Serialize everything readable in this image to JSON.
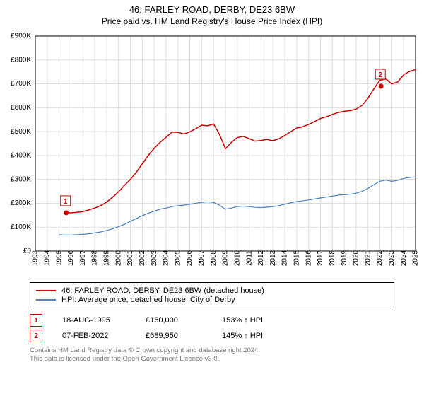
{
  "title": {
    "main": "46, FARLEY ROAD, DERBY, DE23 6BW",
    "sub": "Price paid vs. HM Land Registry's House Price Index (HPI)"
  },
  "chart": {
    "type": "line",
    "background_color": "#ffffff",
    "plot_border_color": "#000000",
    "grid_color": "#dddddd",
    "axis_fontsize": 10,
    "title_fontsize": 13,
    "xlim": [
      1993,
      2025
    ],
    "ylim": [
      0,
      900
    ],
    "x_ticks": [
      1993,
      1994,
      1995,
      1996,
      1997,
      1998,
      1999,
      2000,
      2001,
      2002,
      2003,
      2004,
      2005,
      2006,
      2007,
      2008,
      2009,
      2010,
      2011,
      2012,
      2013,
      2014,
      2015,
      2016,
      2017,
      2018,
      2019,
      2020,
      2021,
      2022,
      2023,
      2024,
      2025
    ],
    "y_ticks": [
      0,
      100,
      200,
      300,
      400,
      500,
      600,
      700,
      800,
      900
    ],
    "y_tick_labels": [
      "£0",
      "£100K",
      "£200K",
      "£300K",
      "£400K",
      "£500K",
      "£600K",
      "£700K",
      "£800K",
      "£900K"
    ],
    "series": [
      {
        "id": "price_paid",
        "label": "46, FARLEY ROAD, DERBY, DE23 6BW (detached house)",
        "color": "#cc0000",
        "line_width": 1.5,
        "x": [
          1995.5,
          1996,
          1996.5,
          1997,
          1997.5,
          1998,
          1998.5,
          1999,
          1999.5,
          2000,
          2000.5,
          2001,
          2001.5,
          2002,
          2002.5,
          2003,
          2003.5,
          2004,
          2004.5,
          2005,
          2005.5,
          2006,
          2006.5,
          2007,
          2007.5,
          2008,
          2008.5,
          2009,
          2009.5,
          2010,
          2010.5,
          2011,
          2011.5,
          2012,
          2012.5,
          2013,
          2013.5,
          2014,
          2014.5,
          2015,
          2015.5,
          2016,
          2016.5,
          2017,
          2017.5,
          2018,
          2018.5,
          2019,
          2019.5,
          2020,
          2020.5,
          2021,
          2021.5,
          2022,
          2022.5,
          2023,
          2023.5,
          2024,
          2024.5,
          2025
        ],
        "y": [
          160,
          160,
          162,
          165,
          172,
          180,
          190,
          205,
          225,
          248,
          275,
          300,
          330,
          365,
          400,
          430,
          455,
          476,
          498,
          497,
          490,
          499,
          512,
          527,
          524,
          532,
          488,
          428,
          455,
          475,
          480,
          470,
          460,
          463,
          467,
          462,
          470,
          484,
          500,
          515,
          520,
          530,
          542,
          555,
          562,
          572,
          580,
          585,
          588,
          594,
          610,
          640,
          680,
          715,
          720,
          700,
          708,
          738,
          752,
          760
        ]
      },
      {
        "id": "hpi",
        "label": "HPI: Average price, detached house, City of Derby",
        "color": "#4a7dbf",
        "line_width": 1.2,
        "x": [
          1995,
          1995.5,
          1996,
          1996.5,
          1997,
          1997.5,
          1998,
          1998.5,
          1999,
          1999.5,
          2000,
          2000.5,
          2001,
          2001.5,
          2002,
          2002.5,
          2003,
          2003.5,
          2004,
          2004.5,
          2005,
          2005.5,
          2006,
          2006.5,
          2007,
          2007.5,
          2008,
          2008.5,
          2009,
          2009.5,
          2010,
          2010.5,
          2011,
          2011.5,
          2012,
          2012.5,
          2013,
          2013.5,
          2014,
          2014.5,
          2015,
          2015.5,
          2016,
          2016.5,
          2017,
          2017.5,
          2018,
          2018.5,
          2019,
          2019.5,
          2020,
          2020.5,
          2021,
          2021.5,
          2022,
          2022.5,
          2023,
          2023.5,
          2024,
          2024.5,
          2025
        ],
        "y": [
          68,
          67,
          67,
          68,
          70,
          72,
          76,
          80,
          86,
          93,
          102,
          112,
          124,
          136,
          148,
          158,
          167,
          175,
          180,
          186,
          190,
          192,
          196,
          200,
          204,
          206,
          203,
          192,
          175,
          180,
          186,
          188,
          186,
          183,
          182,
          184,
          186,
          190,
          196,
          202,
          207,
          210,
          214,
          218,
          222,
          226,
          230,
          234,
          236,
          238,
          242,
          250,
          262,
          278,
          292,
          297,
          292,
          296,
          304,
          308,
          310
        ]
      }
    ],
    "markers": [
      {
        "id": "1",
        "x": 1995.6,
        "y": 160,
        "color": "#cc0000"
      },
      {
        "id": "2",
        "x": 2022.1,
        "y": 690,
        "color": "#cc0000"
      }
    ]
  },
  "legend": {
    "border_color": "#000000",
    "fontsize": 11
  },
  "marker_table": {
    "rows": [
      {
        "marker": "1",
        "color": "#cc0000",
        "date": "18-AUG-1995",
        "price": "£160,000",
        "pct": "153% ↑ HPI"
      },
      {
        "marker": "2",
        "color": "#cc0000",
        "date": "07-FEB-2022",
        "price": "£689,950",
        "pct": "145% ↑ HPI"
      }
    ]
  },
  "footer": {
    "line1": "Contains HM Land Registry data © Crown copyright and database right 2024.",
    "line2": "This data is licensed under the Open Government Licence v3.0."
  }
}
